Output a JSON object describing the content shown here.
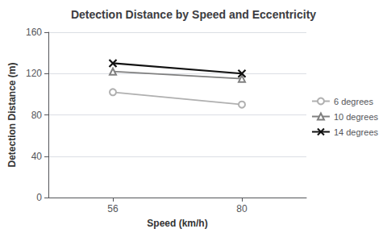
{
  "chart_data": {
    "type": "line",
    "title": "Detection Distance by Speed and Eccentricity",
    "xlabel": "Speed (km/h)",
    "ylabel": "Detection Distance (m)",
    "x": [
      56,
      80
    ],
    "xlim": [
      44,
      92
    ],
    "xticks": [
      56,
      80
    ],
    "ylim": [
      0,
      160
    ],
    "yticks": [
      0,
      40,
      80,
      120,
      160
    ],
    "grid": true,
    "legend": "right",
    "series": [
      {
        "name": "6 degrees",
        "color": "#b0b0b0",
        "marker": "circle",
        "values": [
          102,
          90
        ]
      },
      {
        "name": "10 degrees",
        "color": "#808080",
        "marker": "triangle",
        "values": [
          122,
          115
        ]
      },
      {
        "name": "14 degrees",
        "color": "#111111",
        "marker": "x",
        "values": [
          130,
          120
        ]
      }
    ]
  }
}
